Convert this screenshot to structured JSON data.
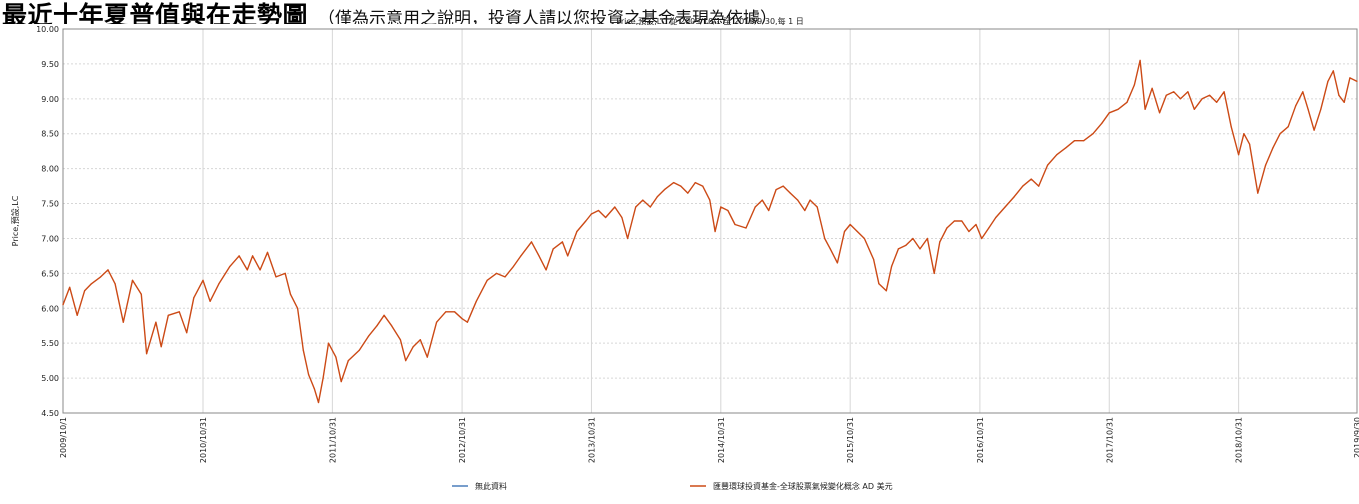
{
  "headline": {
    "main": "最近十年夏普值與在走勢圖",
    "sub": "（僅為示意用之說明，投資人請以您投資之基金表現為依據）"
  },
  "chart_data": {
    "type": "line",
    "title": "Price,預設,LC 從 2009/10/1 至 2019/9/30,每 1 日",
    "ylabel": "Price,預設,LC",
    "xlabel": "",
    "ylim": [
      4.5,
      10.0
    ],
    "xlim": [
      "2009-10-01",
      "2019-09-30"
    ],
    "grid": true,
    "x_tick_labels": [
      "2009/10/1",
      "2010/10/31",
      "2011/10/31",
      "2012/10/31",
      "2013/10/31",
      "2014/10/31",
      "2015/10/31",
      "2016/10/31",
      "2017/10/31",
      "2018/10/31",
      "2019/9/30"
    ],
    "y_tick_labels": [
      "4.50",
      "5.00",
      "5.50",
      "6.00",
      "6.50",
      "7.00",
      "7.50",
      "8.00",
      "8.50",
      "9.00",
      "9.50",
      "10.00"
    ],
    "series": [
      {
        "name": "匯豐環球投資基金-全球股票氣候變化概念 AD 美元",
        "color": "#cc4a16",
        "points": [
          [
            "2009-10-01",
            6.05
          ],
          [
            "2009-10-20",
            6.3
          ],
          [
            "2009-11-10",
            5.9
          ],
          [
            "2009-12-01",
            6.25
          ],
          [
            "2009-12-20",
            6.35
          ],
          [
            "2010-01-15",
            6.45
          ],
          [
            "2010-02-05",
            6.55
          ],
          [
            "2010-02-25",
            6.35
          ],
          [
            "2010-03-20",
            5.8
          ],
          [
            "2010-04-15",
            6.4
          ],
          [
            "2010-05-10",
            6.2
          ],
          [
            "2010-05-25",
            5.35
          ],
          [
            "2010-06-20",
            5.8
          ],
          [
            "2010-07-05",
            5.45
          ],
          [
            "2010-07-25",
            5.9
          ],
          [
            "2010-08-25",
            5.95
          ],
          [
            "2010-09-15",
            5.65
          ],
          [
            "2010-10-05",
            6.15
          ],
          [
            "2010-10-31",
            6.4
          ],
          [
            "2010-11-20",
            6.1
          ],
          [
            "2010-12-15",
            6.35
          ],
          [
            "2011-01-15",
            6.6
          ],
          [
            "2011-02-10",
            6.75
          ],
          [
            "2011-03-05",
            6.55
          ],
          [
            "2011-03-20",
            6.75
          ],
          [
            "2011-04-10",
            6.55
          ],
          [
            "2011-05-01",
            6.8
          ],
          [
            "2011-05-25",
            6.45
          ],
          [
            "2011-06-20",
            6.5
          ],
          [
            "2011-07-05",
            6.2
          ],
          [
            "2011-07-25",
            6.0
          ],
          [
            "2011-08-10",
            5.4
          ],
          [
            "2011-08-25",
            5.05
          ],
          [
            "2011-09-10",
            4.85
          ],
          [
            "2011-09-22",
            4.65
          ],
          [
            "2011-10-05",
            5.0
          ],
          [
            "2011-10-20",
            5.5
          ],
          [
            "2011-11-10",
            5.3
          ],
          [
            "2011-11-25",
            4.95
          ],
          [
            "2011-12-15",
            5.25
          ],
          [
            "2012-01-15",
            5.4
          ],
          [
            "2012-02-10",
            5.6
          ],
          [
            "2012-03-05",
            5.75
          ],
          [
            "2012-03-25",
            5.9
          ],
          [
            "2012-04-15",
            5.75
          ],
          [
            "2012-05-10",
            5.55
          ],
          [
            "2012-05-25",
            5.25
          ],
          [
            "2012-06-15",
            5.45
          ],
          [
            "2012-07-05",
            5.55
          ],
          [
            "2012-07-25",
            5.3
          ],
          [
            "2012-08-20",
            5.8
          ],
          [
            "2012-09-15",
            5.95
          ],
          [
            "2012-10-10",
            5.95
          ],
          [
            "2012-10-31",
            5.85
          ],
          [
            "2012-11-15",
            5.8
          ],
          [
            "2012-12-10",
            6.1
          ],
          [
            "2013-01-10",
            6.4
          ],
          [
            "2013-02-05",
            6.5
          ],
          [
            "2013-03-01",
            6.45
          ],
          [
            "2013-03-25",
            6.6
          ],
          [
            "2013-04-15",
            6.75
          ],
          [
            "2013-05-15",
            6.95
          ],
          [
            "2013-06-05",
            6.75
          ],
          [
            "2013-06-25",
            6.55
          ],
          [
            "2013-07-15",
            6.85
          ],
          [
            "2013-08-10",
            6.95
          ],
          [
            "2013-08-25",
            6.75
          ],
          [
            "2013-09-20",
            7.1
          ],
          [
            "2013-10-15",
            7.25
          ],
          [
            "2013-10-31",
            7.35
          ],
          [
            "2013-11-20",
            7.4
          ],
          [
            "2013-12-10",
            7.3
          ],
          [
            "2014-01-05",
            7.45
          ],
          [
            "2014-01-25",
            7.3
          ],
          [
            "2014-02-10",
            7.0
          ],
          [
            "2014-03-05",
            7.45
          ],
          [
            "2014-03-25",
            7.55
          ],
          [
            "2014-04-15",
            7.45
          ],
          [
            "2014-05-05",
            7.6
          ],
          [
            "2014-05-25",
            7.7
          ],
          [
            "2014-06-20",
            7.8
          ],
          [
            "2014-07-10",
            7.75
          ],
          [
            "2014-07-30",
            7.65
          ],
          [
            "2014-08-20",
            7.8
          ],
          [
            "2014-09-10",
            7.75
          ],
          [
            "2014-09-30",
            7.55
          ],
          [
            "2014-10-15",
            7.1
          ],
          [
            "2014-10-31",
            7.45
          ],
          [
            "2014-11-20",
            7.4
          ],
          [
            "2014-12-10",
            7.2
          ],
          [
            "2015-01-10",
            7.15
          ],
          [
            "2015-02-05",
            7.45
          ],
          [
            "2015-02-25",
            7.55
          ],
          [
            "2015-03-15",
            7.4
          ],
          [
            "2015-04-05",
            7.7
          ],
          [
            "2015-04-25",
            7.75
          ],
          [
            "2015-05-15",
            7.65
          ],
          [
            "2015-06-05",
            7.55
          ],
          [
            "2015-06-25",
            7.4
          ],
          [
            "2015-07-10",
            7.55
          ],
          [
            "2015-07-30",
            7.45
          ],
          [
            "2015-08-20",
            7.0
          ],
          [
            "2015-09-05",
            6.85
          ],
          [
            "2015-09-25",
            6.65
          ],
          [
            "2015-10-15",
            7.1
          ],
          [
            "2015-10-31",
            7.2
          ],
          [
            "2015-11-20",
            7.1
          ],
          [
            "2015-12-10",
            7.0
          ],
          [
            "2016-01-05",
            6.7
          ],
          [
            "2016-01-20",
            6.35
          ],
          [
            "2016-02-10",
            6.25
          ],
          [
            "2016-02-25",
            6.6
          ],
          [
            "2016-03-15",
            6.85
          ],
          [
            "2016-04-05",
            6.9
          ],
          [
            "2016-04-25",
            7.0
          ],
          [
            "2016-05-15",
            6.85
          ],
          [
            "2016-06-05",
            7.0
          ],
          [
            "2016-06-24",
            6.5
          ],
          [
            "2016-07-10",
            6.95
          ],
          [
            "2016-07-30",
            7.15
          ],
          [
            "2016-08-20",
            7.25
          ],
          [
            "2016-09-10",
            7.25
          ],
          [
            "2016-09-30",
            7.1
          ],
          [
            "2016-10-20",
            7.2
          ],
          [
            "2016-11-05",
            7.0
          ],
          [
            "2016-11-25",
            7.15
          ],
          [
            "2016-12-15",
            7.3
          ],
          [
            "2017-01-10",
            7.45
          ],
          [
            "2017-02-05",
            7.6
          ],
          [
            "2017-03-01",
            7.75
          ],
          [
            "2017-03-25",
            7.85
          ],
          [
            "2017-04-15",
            7.75
          ],
          [
            "2017-05-10",
            8.05
          ],
          [
            "2017-06-05",
            8.2
          ],
          [
            "2017-07-01",
            8.3
          ],
          [
            "2017-07-25",
            8.4
          ],
          [
            "2017-08-20",
            8.4
          ],
          [
            "2017-09-15",
            8.5
          ],
          [
            "2017-10-10",
            8.65
          ],
          [
            "2017-10-31",
            8.8
          ],
          [
            "2017-11-25",
            8.85
          ],
          [
            "2017-12-20",
            8.95
          ],
          [
            "2018-01-10",
            9.2
          ],
          [
            "2018-01-26",
            9.55
          ],
          [
            "2018-02-09",
            8.85
          ],
          [
            "2018-03-01",
            9.15
          ],
          [
            "2018-03-22",
            8.8
          ],
          [
            "2018-04-10",
            9.05
          ],
          [
            "2018-05-01",
            9.1
          ],
          [
            "2018-05-20",
            9.0
          ],
          [
            "2018-06-10",
            9.1
          ],
          [
            "2018-06-28",
            8.85
          ],
          [
            "2018-07-20",
            9.0
          ],
          [
            "2018-08-10",
            9.05
          ],
          [
            "2018-08-30",
            8.95
          ],
          [
            "2018-09-20",
            9.1
          ],
          [
            "2018-10-10",
            8.6
          ],
          [
            "2018-10-31",
            8.2
          ],
          [
            "2018-11-15",
            8.5
          ],
          [
            "2018-12-01",
            8.35
          ],
          [
            "2018-12-24",
            7.65
          ],
          [
            "2019-01-15",
            8.05
          ],
          [
            "2019-02-05",
            8.3
          ],
          [
            "2019-02-25",
            8.5
          ],
          [
            "2019-03-20",
            8.6
          ],
          [
            "2019-04-10",
            8.9
          ],
          [
            "2019-04-30",
            9.1
          ],
          [
            "2019-05-15",
            8.85
          ],
          [
            "2019-06-01",
            8.55
          ],
          [
            "2019-06-20",
            8.85
          ],
          [
            "2019-07-10",
            9.25
          ],
          [
            "2019-07-25",
            9.4
          ],
          [
            "2019-08-10",
            9.05
          ],
          [
            "2019-08-25",
            8.95
          ],
          [
            "2019-09-10",
            9.3
          ],
          [
            "2019-09-30",
            9.25
          ]
        ]
      },
      {
        "name": "無此資料",
        "color": "#4a7eba",
        "points": []
      }
    ],
    "legend_position": "bottom"
  }
}
